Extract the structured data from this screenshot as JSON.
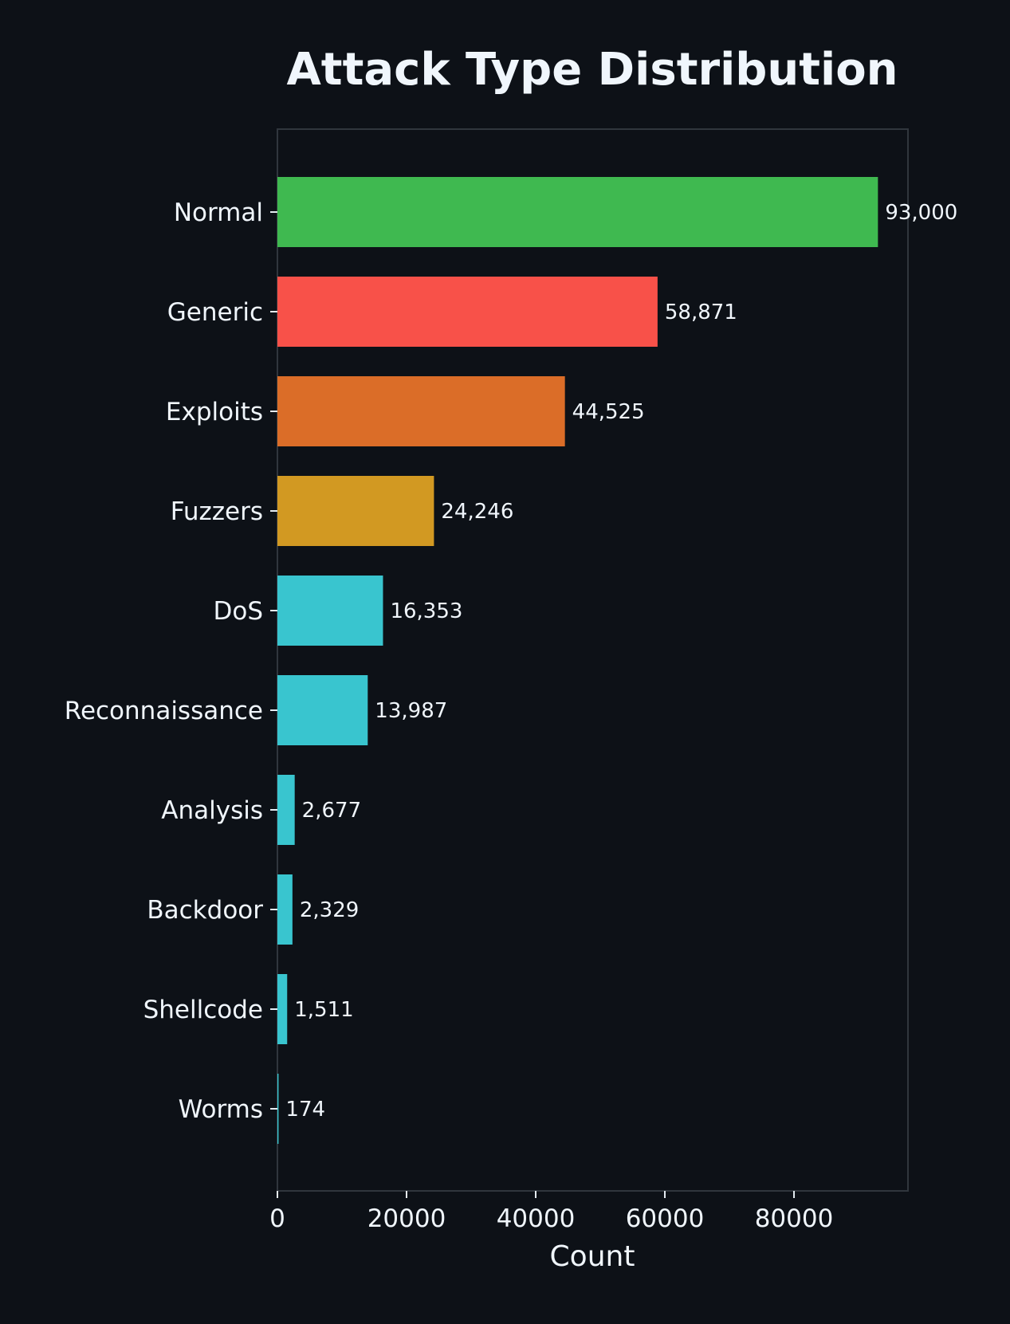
{
  "chart_data": {
    "type": "bar",
    "orientation": "horizontal",
    "title": "Attack Type Distribution",
    "xlabel": "Count",
    "ylabel": "",
    "categories": [
      "Normal",
      "Generic",
      "Exploits",
      "Fuzzers",
      "DoS",
      "Reconnaissance",
      "Analysis",
      "Backdoor",
      "Shellcode",
      "Worms"
    ],
    "values": [
      93000,
      58871,
      44525,
      24246,
      16353,
      13987,
      2677,
      2329,
      1511,
      174
    ],
    "value_labels": [
      "93,000",
      "58,871",
      "44,525",
      "24,246",
      "16,353",
      "13,987",
      "2,677",
      "2,329",
      "1,511",
      "174"
    ],
    "colors": [
      "#3fb950",
      "#f85149",
      "#db6d28",
      "#d29922",
      "#39c5cf",
      "#39c5cf",
      "#39c5cf",
      "#39c5cf",
      "#39c5cf",
      "#39c5cf"
    ],
    "xlim": [
      0,
      97650
    ],
    "xticks": [
      0,
      20000,
      40000,
      60000,
      80000
    ],
    "xtick_labels": [
      "0",
      "20000",
      "40000",
      "60000",
      "80000"
    ],
    "grid": false,
    "background": "#0d1117"
  }
}
